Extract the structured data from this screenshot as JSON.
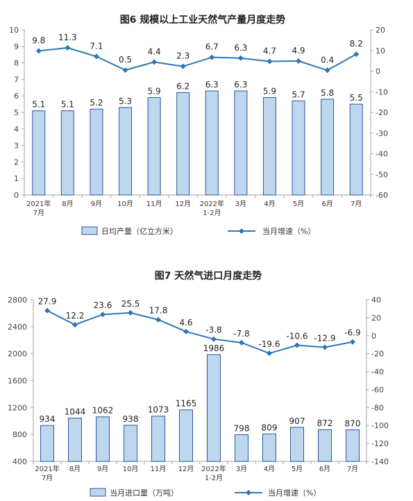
{
  "chart_data": [
    {
      "type": "bar",
      "title": "图6 规模以上工业天然气产量月度走势",
      "categories": [
        "2021年\n7月",
        "8月",
        "9月",
        "10月",
        "11月",
        "12月",
        "2022年\n1-2月",
        "3月",
        "4月",
        "5月",
        "6月",
        "7月"
      ],
      "series": [
        {
          "name": "日均产量（亿立方米）",
          "type": "bar",
          "axis": "left",
          "values": [
            5.1,
            5.1,
            5.2,
            5.3,
            5.9,
            6.2,
            6.3,
            6.3,
            5.9,
            5.7,
            5.8,
            5.5
          ]
        },
        {
          "name": "当月增速（%）",
          "type": "line",
          "axis": "right",
          "values": [
            9.8,
            11.3,
            7.1,
            0.5,
            4.4,
            2.3,
            6.7,
            6.3,
            4.7,
            4.9,
            0.4,
            8.2
          ]
        }
      ],
      "y_left": {
        "range": [
          0,
          10
        ],
        "ticks": [
          0,
          1,
          2,
          3,
          4,
          5,
          6,
          7,
          8,
          9,
          10
        ]
      },
      "y_right": {
        "range": [
          -60,
          20
        ],
        "ticks": [
          20,
          10,
          0,
          -10,
          -20,
          -30,
          -40,
          -50,
          -60
        ]
      },
      "xlabel": "",
      "ylabel": "",
      "grid": false,
      "legend": "bottom",
      "data_labels": true
    },
    {
      "type": "bar",
      "title": "图7 天然气进口月度走势",
      "categories": [
        "2021年\n7月",
        "8月",
        "9月",
        "10月",
        "11月",
        "12月",
        "2022年\n1-2月",
        "3月",
        "4月",
        "5月",
        "6月",
        "7月"
      ],
      "series": [
        {
          "name": "当月进口量（万吨）",
          "type": "bar",
          "axis": "left",
          "values": [
            934,
            1044,
            1062,
            938,
            1073,
            1165,
            1986,
            798,
            809,
            907,
            872,
            870
          ]
        },
        {
          "name": "当月增速（%）",
          "type": "line",
          "axis": "right",
          "values": [
            27.9,
            12.2,
            23.6,
            25.5,
            17.8,
            4.6,
            -3.8,
            -7.8,
            -19.6,
            -10.6,
            -12.9,
            -6.9
          ]
        }
      ],
      "y_left": {
        "range": [
          400,
          2800
        ],
        "ticks": [
          400,
          800,
          1200,
          1600,
          2000,
          2400,
          2800
        ]
      },
      "y_right": {
        "range": [
          -140,
          40
        ],
        "ticks": [
          40,
          20,
          0,
          -20,
          -40,
          -60,
          -80,
          -100,
          -120,
          -140
        ]
      },
      "xlabel": "",
      "ylabel": "",
      "grid": false,
      "legend": "bottom",
      "data_labels": true
    }
  ],
  "colors": {
    "bar_fill": "#bdd7ee",
    "bar_stroke": "#2f5597",
    "line": "#2e75b6",
    "axis": "#a6a6a6",
    "text": "#222222"
  }
}
